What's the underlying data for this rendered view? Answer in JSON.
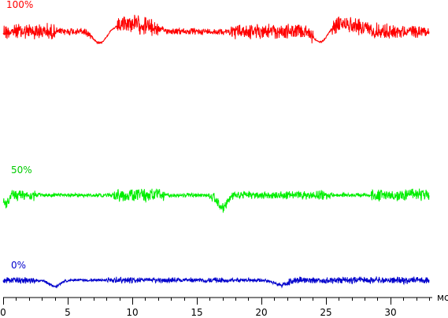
{
  "chart_data": {
    "type": "line",
    "xlabel": "мс",
    "xlim": [
      0,
      33
    ],
    "x_ticks": [
      0,
      5,
      10,
      15,
      20,
      25,
      30
    ],
    "grid": false,
    "series": [
      {
        "name": "100%",
        "color": "#ff0000",
        "base": 40,
        "noise": [
          [
            0,
            4,
            12
          ],
          [
            4,
            6.8,
            6
          ],
          [
            8.8,
            12,
            14
          ],
          [
            12,
            17.5,
            5
          ],
          [
            17.5,
            24,
            11
          ],
          [
            25.5,
            30,
            12
          ],
          [
            30,
            33,
            9
          ]
        ],
        "dips": [
          [
            7.5,
            0.7,
            16
          ],
          [
            24.6,
            0.7,
            16
          ]
        ],
        "bumps": [
          [
            10,
            1.8,
            -10
          ],
          [
            26.5,
            1.6,
            -10
          ]
        ]
      },
      {
        "name": "50%",
        "color": "#00ee00",
        "base": 248,
        "noise": [
          [
            0,
            2.5,
            9
          ],
          [
            2.5,
            8.5,
            3
          ],
          [
            8.5,
            12.5,
            10
          ],
          [
            12.5,
            16,
            3
          ],
          [
            16,
            18,
            7
          ],
          [
            18,
            23.5,
            6
          ],
          [
            23.5,
            25.5,
            7
          ],
          [
            25.5,
            28.5,
            3
          ],
          [
            28.5,
            33,
            9
          ]
        ],
        "dips": [
          [
            17,
            0.5,
            16
          ],
          [
            0.2,
            0.3,
            12
          ]
        ],
        "bumps": []
      },
      {
        "name": "0%",
        "color": "#0000cc",
        "base": 356,
        "noise": [
          [
            0,
            2.5,
            5
          ],
          [
            2.5,
            8,
            2
          ],
          [
            8,
            10,
            5
          ],
          [
            10,
            15.5,
            4
          ],
          [
            15.5,
            17,
            4
          ],
          [
            17,
            22,
            3
          ],
          [
            22,
            28,
            5
          ],
          [
            28,
            33,
            5
          ]
        ],
        "dips": [
          [
            4,
            0.6,
            8
          ],
          [
            21.5,
            0.7,
            6
          ]
        ],
        "bumps": []
      }
    ]
  },
  "labels": {
    "s100": "100%",
    "s50": "50%",
    "s0": "0%",
    "unit": "мс"
  },
  "ticks": {
    "t0": "0",
    "t5": "5",
    "t10": "10",
    "t15": "15",
    "t20": "20",
    "t25": "25",
    "t30": "30"
  }
}
